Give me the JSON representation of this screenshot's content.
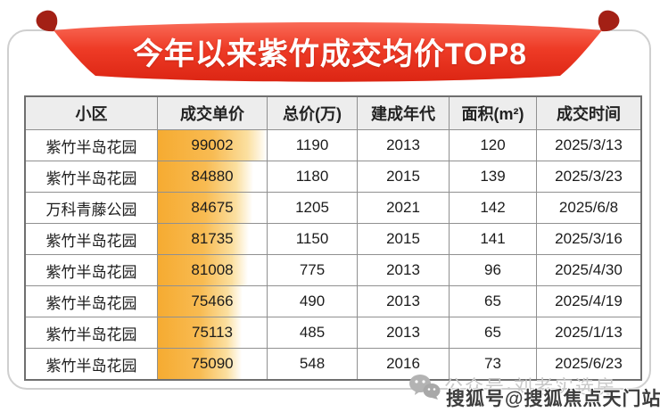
{
  "banner": {
    "title": "今年以来紫竹成交均价TOP8"
  },
  "chart_data": {
    "type": "table",
    "title": "今年以来紫竹成交均价TOP8",
    "columns": [
      "小区",
      "成交单价",
      "总价(万)",
      "建成年代",
      "面积(m²)",
      "成交时间"
    ],
    "rows": [
      [
        "紫竹半岛花园",
        "99002",
        "1190",
        "2013",
        "120",
        "2025/3/13"
      ],
      [
        "紫竹半岛花园",
        "84880",
        "1180",
        "2015",
        "139",
        "2025/3/23"
      ],
      [
        "万科青藤公园",
        "84675",
        "1205",
        "2021",
        "142",
        "2025/6/8"
      ],
      [
        "紫竹半岛花园",
        "81735",
        "1150",
        "2015",
        "141",
        "2025/3/16"
      ],
      [
        "紫竹半岛花园",
        "81008",
        "775",
        "2013",
        "96",
        "2025/4/30"
      ],
      [
        "紫竹半岛花园",
        "75466",
        "490",
        "2013",
        "65",
        "2025/4/19"
      ],
      [
        "紫竹半岛花园",
        "75113",
        "485",
        "2013",
        "65",
        "2025/1/13"
      ],
      [
        "紫竹半岛花园",
        "75090",
        "548",
        "2016",
        "73",
        "2025/6/23"
      ]
    ],
    "unit_price_bar_percents": [
      100,
      88,
      87,
      84,
      83,
      78,
      77,
      77
    ]
  },
  "watermarks": {
    "wechat_account": "公众号·刘老实选房",
    "sohu_account": "搜狐号@搜狐焦点天门站"
  },
  "colors": {
    "ribbon_red_top": "#f96a57",
    "ribbon_red_bottom": "#dc2513",
    "ribbon_fold": "#a32015",
    "bar_orange": "#f6ab31",
    "header_bg": "#ededed",
    "border_gray": "#909090",
    "watermark_gray": "#c8c8c8"
  }
}
